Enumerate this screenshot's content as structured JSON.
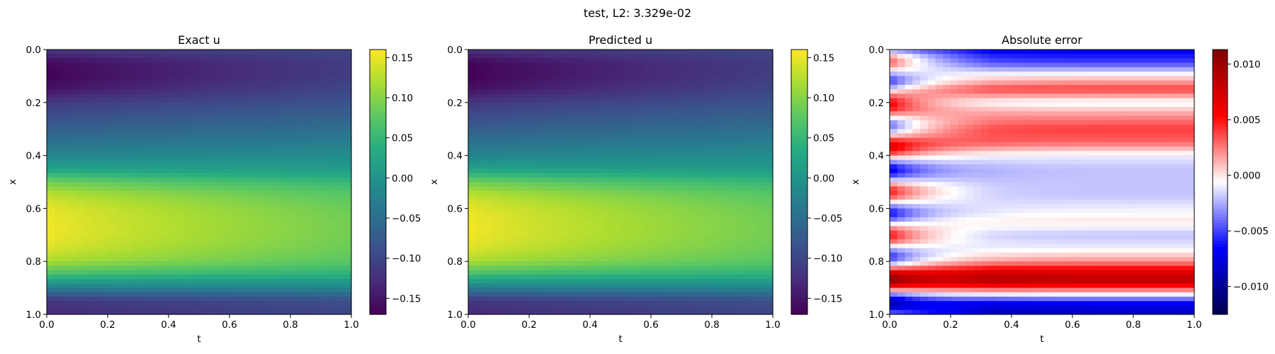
{
  "figure": {
    "suptitle": "test, L2: 3.329e-02"
  },
  "chart_data": [
    {
      "type": "heatmap",
      "title": "Exact u",
      "xlabel": "t",
      "ylabel": "x",
      "xlim": [
        0,
        1
      ],
      "ylim": [
        0,
        1
      ],
      "x_inverted": false,
      "y_inverted": true,
      "xticks": [
        "0.0",
        "0.2",
        "0.4",
        "0.6",
        "0.8",
        "1.0"
      ],
      "yticks": [
        "0.0",
        "0.2",
        "0.4",
        "0.6",
        "0.8",
        "1.0"
      ],
      "colormap": "viridis",
      "colorbar_range": [
        -0.17,
        0.16
      ],
      "colorbar_ticks": [
        "−0.15",
        "−0.10",
        "−0.05",
        "0.00",
        "0.05",
        "0.10",
        "0.15"
      ],
      "field_profile": {
        "x": [
          0.0,
          0.05,
          0.1,
          0.15,
          0.2,
          0.3,
          0.4,
          0.45,
          0.5,
          0.55,
          0.6,
          0.65,
          0.7,
          0.75,
          0.8,
          0.85,
          0.9,
          0.95,
          1.0
        ],
        "u_at_t0": [
          -0.115,
          -0.165,
          -0.17,
          -0.155,
          -0.115,
          -0.07,
          -0.02,
          0.02,
          0.09,
          0.13,
          0.15,
          0.155,
          0.155,
          0.145,
          0.12,
          0.06,
          -0.03,
          -0.12,
          -0.13
        ],
        "u_at_t1": [
          -0.1,
          -0.11,
          -0.11,
          -0.1,
          -0.085,
          -0.05,
          -0.01,
          0.01,
          0.05,
          0.075,
          0.085,
          0.09,
          0.09,
          0.085,
          0.075,
          0.04,
          -0.02,
          -0.09,
          -0.1
        ]
      }
    },
    {
      "type": "heatmap",
      "title": "Predicted u",
      "xlabel": "t",
      "ylabel": "x",
      "xlim": [
        0,
        1
      ],
      "ylim": [
        0,
        1
      ],
      "x_inverted": false,
      "y_inverted": true,
      "xticks": [
        "0.0",
        "0.2",
        "0.4",
        "0.6",
        "0.8",
        "1.0"
      ],
      "yticks": [
        "0.0",
        "0.2",
        "0.4",
        "0.6",
        "0.8",
        "1.0"
      ],
      "colormap": "viridis",
      "colorbar_range": [
        -0.17,
        0.16
      ],
      "colorbar_ticks": [
        "−0.15",
        "−0.10",
        "−0.05",
        "0.00",
        "0.05",
        "0.10",
        "0.15"
      ],
      "field_profile": {
        "x": [
          0.0,
          0.05,
          0.1,
          0.15,
          0.2,
          0.3,
          0.4,
          0.45,
          0.5,
          0.55,
          0.6,
          0.65,
          0.7,
          0.75,
          0.8,
          0.85,
          0.9,
          0.95,
          1.0
        ],
        "u_at_t0": [
          -0.12,
          -0.168,
          -0.172,
          -0.157,
          -0.118,
          -0.072,
          -0.022,
          0.018,
          0.09,
          0.13,
          0.15,
          0.156,
          0.156,
          0.146,
          0.12,
          0.058,
          -0.032,
          -0.12,
          -0.132
        ],
        "u_at_t1": [
          -0.1,
          -0.11,
          -0.11,
          -0.1,
          -0.085,
          -0.05,
          -0.01,
          0.01,
          0.05,
          0.075,
          0.085,
          0.09,
          0.09,
          0.085,
          0.075,
          0.04,
          -0.02,
          -0.09,
          -0.1
        ]
      }
    },
    {
      "type": "heatmap",
      "title": "Absolute error",
      "xlabel": "t",
      "ylabel": "x",
      "xlim": [
        0,
        1
      ],
      "ylim": [
        0,
        1
      ],
      "x_inverted": false,
      "y_inverted": true,
      "xticks": [
        "0.0",
        "0.2",
        "0.4",
        "0.6",
        "0.8",
        "1.0"
      ],
      "yticks": [
        "0.0",
        "0.2",
        "0.4",
        "0.6",
        "0.8",
        "1.0"
      ],
      "colormap": "seismic",
      "colorbar_range": [
        -0.0125,
        0.0113
      ],
      "colorbar_ticks": [
        "−0.010",
        "−0.005",
        "0.000",
        "0.005",
        "0.010"
      ],
      "field_profile": {
        "x": [
          0.0,
          0.05,
          0.1,
          0.15,
          0.2,
          0.25,
          0.3,
          0.35,
          0.4,
          0.45,
          0.5,
          0.55,
          0.6,
          0.65,
          0.7,
          0.75,
          0.8,
          0.85,
          0.88,
          0.92,
          0.96,
          1.0
        ],
        "error_mid_t": [
          -0.007,
          -0.005,
          0.0,
          0.004,
          -0.001,
          0.002,
          0.004,
          0.003,
          -0.001,
          -0.002,
          -0.002,
          -0.002,
          -0.001,
          0.0,
          -0.002,
          -0.001,
          0.002,
          0.008,
          0.008,
          0.0,
          -0.007,
          -0.009
        ]
      }
    }
  ]
}
